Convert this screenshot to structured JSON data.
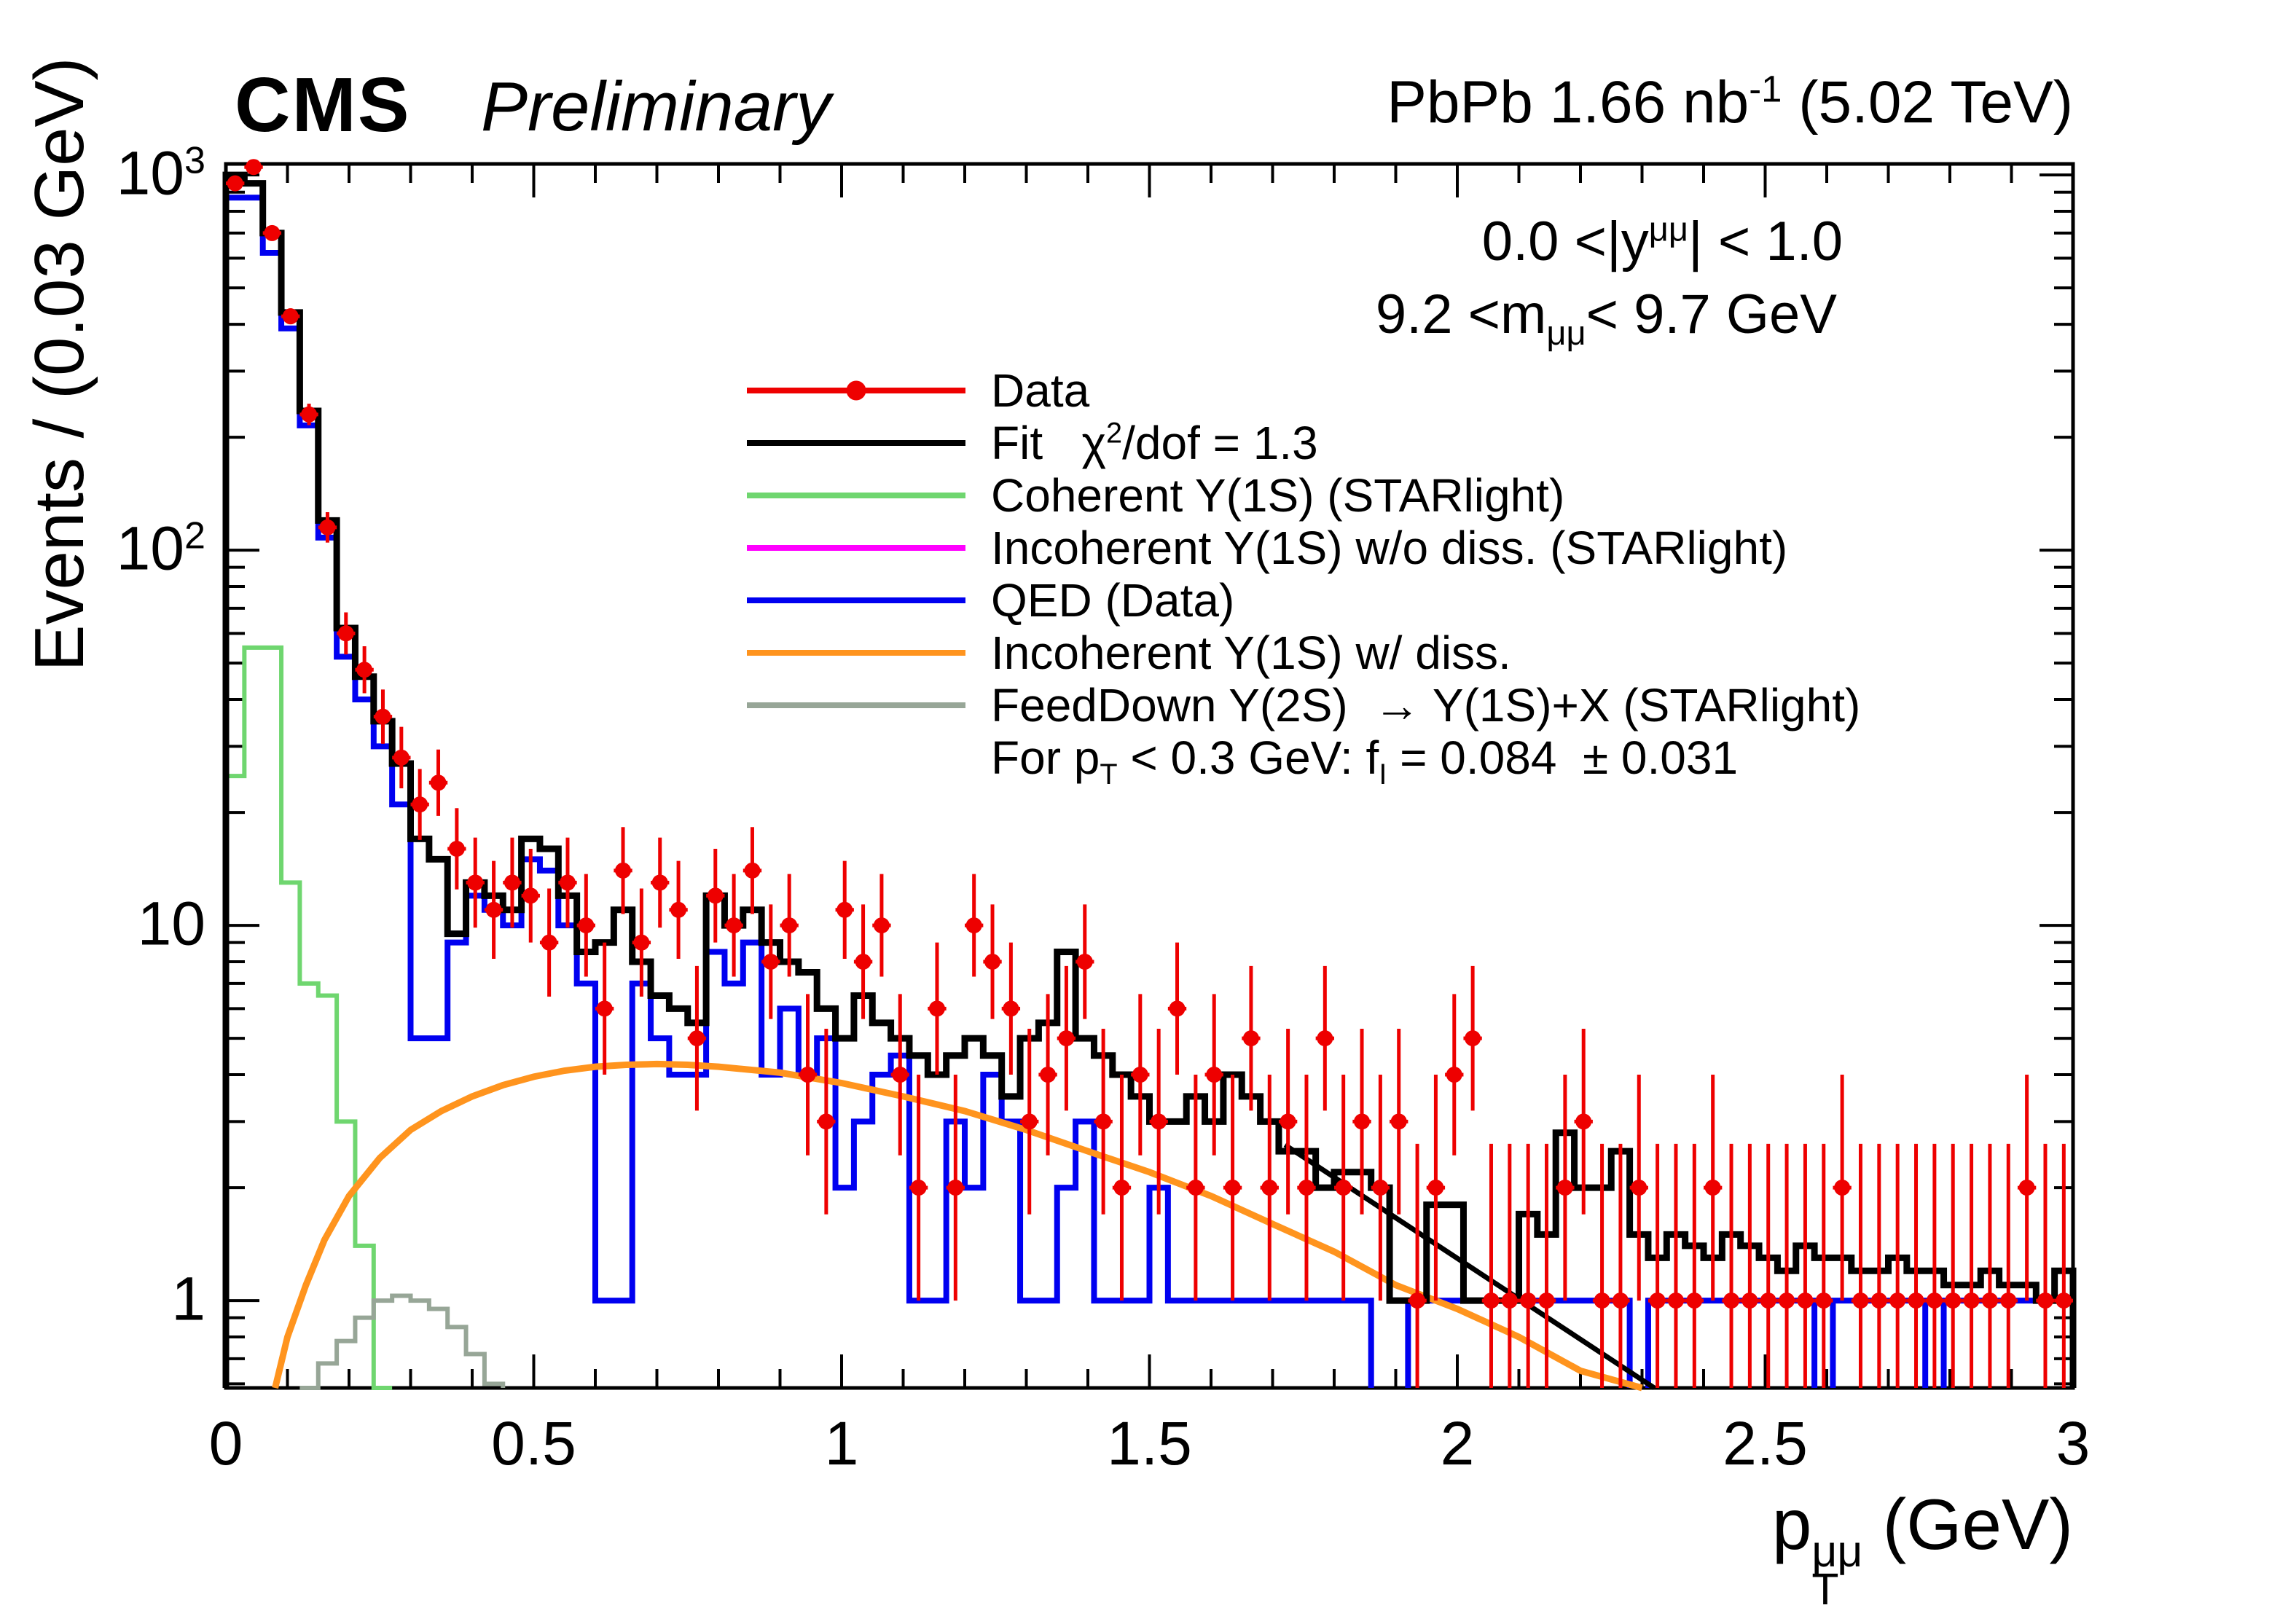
{
  "header": {
    "cms": "CMS",
    "preliminary": "Preliminary",
    "lumi_parts": [
      {
        "t": "PbPb 1.66 nb"
      },
      {
        "t": "-1",
        "sup": true
      },
      {
        "t": " (5.02 TeV)"
      }
    ]
  },
  "annotations": {
    "rapidity_parts": [
      {
        "t": "0.0 <|y"
      },
      {
        "t": "μμ",
        "sup": true
      },
      {
        "t": "| < 1.0"
      }
    ],
    "mass_parts": [
      {
        "t": "9.2 <m"
      },
      {
        "t": "μμ",
        "sub": true
      },
      {
        "t": "< 9.7 GeV"
      }
    ]
  },
  "legend": {
    "entries": [
      {
        "name": "data",
        "color": "#ee0000",
        "marker": "point-line",
        "label_parts": [
          {
            "t": "Data"
          }
        ]
      },
      {
        "name": "fit",
        "color": "#000000",
        "marker": "line",
        "label_parts": [
          {
            "t": "Fit   χ"
          },
          {
            "t": "2",
            "sup": true
          },
          {
            "t": "/dof = 1.3"
          }
        ]
      },
      {
        "name": "coherent",
        "color": "#6fd66f",
        "marker": "line",
        "label_parts": [
          {
            "t": "Coherent Y(1S) (STARlight)"
          }
        ]
      },
      {
        "name": "incoherent-nodiss",
        "color": "#ff00ff",
        "marker": "line",
        "label_parts": [
          {
            "t": "Incoherent Y(1S) w/o diss. (STARlight)"
          }
        ]
      },
      {
        "name": "qed",
        "color": "#0000f0",
        "marker": "line",
        "label_parts": [
          {
            "t": "QED (Data)"
          }
        ]
      },
      {
        "name": "incoherent-diss",
        "color": "#ff941e",
        "marker": "line",
        "label_parts": [
          {
            "t": "Incoherent Y(1S) w/ diss."
          }
        ]
      },
      {
        "name": "feeddown",
        "color": "#97a697",
        "marker": "line",
        "label_parts": [
          {
            "t": "FeedDown Y(2S)  → Y(1S)+X (STARlight)"
          }
        ]
      },
      {
        "name": "fI-note",
        "color": "",
        "marker": "none",
        "label_parts": [
          {
            "t": "For p"
          },
          {
            "t": "T",
            "sub": true
          },
          {
            "t": " < 0.3 GeV: f"
          },
          {
            "t": "I",
            "sub": true
          },
          {
            "t": " = 0.084  ± 0.031"
          }
        ]
      }
    ]
  },
  "chart_data": {
    "type": "bar",
    "note": "log-y histogram, bin width 0.03 GeV, x = dimuon pT (GeV)",
    "ylabel": "Events / (0.03 GeV)",
    "xlabel_parts": [
      {
        "t": "p"
      },
      {
        "stack_top": "μμ",
        "stack_bottom": "T"
      },
      {
        "t": " (GeV)"
      }
    ],
    "xlim": [
      0,
      3
    ],
    "ylim_log": [
      0.585,
      1070
    ],
    "x_ticks": {
      "major": [
        0,
        0.5,
        1,
        1.5,
        2,
        2.5,
        3
      ],
      "labels": [
        "0",
        "0.5",
        "1",
        "1.5",
        "2",
        "2.5",
        "3"
      ],
      "minor_step": 0.1
    },
    "y_ticks": {
      "major": [
        1,
        10,
        100,
        1000
      ],
      "labels": [
        [
          {
            "t": "1"
          }
        ],
        [
          {
            "t": "10"
          }
        ],
        [
          {
            "t": "10"
          },
          {
            "t": "2",
            "sup": true
          }
        ],
        [
          {
            "t": "10"
          },
          {
            "t": "3",
            "sup": true
          }
        ]
      ]
    },
    "series_colors": {
      "data": "#ee0000",
      "fit": "#000000",
      "qed": "#0000f0",
      "coherent": "#6fd66f",
      "feeddown": "#97a697",
      "incoherent_diss": "#ff941e",
      "incoherent_nodiss": "#ff00ff"
    },
    "data": {
      "x_start": 0.015,
      "x_step": 0.03,
      "y": [
        950,
        1050,
        700,
        420,
        230,
        115,
        60,
        48,
        36,
        28,
        21,
        24,
        16,
        13,
        11,
        13,
        12,
        9,
        13,
        10,
        6,
        14,
        9,
        13,
        11,
        5,
        12,
        10,
        14,
        8,
        10,
        4,
        3,
        11,
        8,
        10,
        4,
        2,
        6,
        2,
        10,
        8,
        6,
        3,
        4,
        5,
        8,
        3,
        2,
        4,
        3,
        6,
        2,
        4,
        2,
        5,
        2,
        3,
        2,
        5,
        2,
        3,
        2,
        3,
        1,
        2,
        4,
        5,
        1,
        1,
        1,
        1,
        2,
        3,
        1,
        1,
        2,
        1,
        1,
        1,
        2,
        1,
        1,
        1,
        1,
        1,
        1,
        2,
        1,
        1,
        1,
        1,
        1,
        1,
        1,
        1,
        1,
        2,
        1,
        1
      ]
    },
    "fit": {
      "y": [
        1000,
        950,
        700,
        430,
        235,
        120,
        62,
        46,
        35,
        27,
        17,
        15,
        9.5,
        13,
        12,
        11,
        17,
        16,
        12,
        8.5,
        9,
        11,
        8,
        6.5,
        6,
        5.5,
        12,
        10,
        11,
        9,
        8,
        7.5,
        6,
        5,
        6.5,
        5.5,
        5,
        4.5,
        4,
        4.5,
        5,
        4.5,
        3.5,
        5,
        5.5,
        8.5,
        5,
        4.5,
        4,
        3.5,
        3,
        3,
        3.5,
        3,
        4,
        3.5,
        3,
        2.5,
        2.5,
        2,
        2.2,
        2.2,
        2,
        1,
        1,
        1.8,
        1.8,
        1,
        1,
        1,
        1.7,
        1.5,
        2.8,
        2,
        2,
        2.5,
        1.5,
        1.3,
        1.5,
        1.4,
        1.3,
        1.5,
        1.4,
        1.3,
        1.2,
        1.4,
        1.3,
        1.3,
        1.2,
        1.2,
        1.3,
        1.2,
        1.2,
        1.1,
        1.1,
        1.2,
        1.1,
        1.1,
        1,
        1.2
      ]
    },
    "qed": {
      "y": [
        870,
        870,
        620,
        390,
        215,
        108,
        52,
        40,
        30,
        21,
        5,
        5,
        9,
        12,
        11,
        10,
        15,
        14,
        10,
        7,
        1,
        1,
        7,
        5,
        4,
        4,
        8.5,
        7,
        9,
        4,
        6,
        4,
        5,
        2,
        3,
        4,
        4.5,
        1,
        1,
        3,
        2,
        4,
        3,
        1,
        1,
        2,
        3,
        1,
        1,
        1,
        2,
        1,
        1,
        1,
        1,
        1,
        1,
        1,
        1,
        1,
        1,
        1,
        0,
        0,
        1,
        1,
        1,
        1,
        1,
        1,
        1,
        1,
        1,
        1,
        1,
        1,
        0,
        1,
        1,
        1,
        1,
        1,
        1,
        1,
        1,
        1,
        0,
        1,
        1,
        1,
        1,
        1,
        0,
        1,
        1,
        1,
        1,
        1,
        1,
        1
      ]
    },
    "coherent": {
      "y": [
        25,
        55,
        55,
        13,
        7,
        6.5,
        3,
        1.4,
        0.4
      ]
    },
    "feeddown": {
      "y": [
        0,
        0,
        0,
        0,
        0.55,
        0.68,
        0.78,
        0.9,
        1.0,
        1.03,
        1.0,
        0.95,
        0.85,
        0.72,
        0.6
      ]
    },
    "incoherent_nodiss": {
      "y": []
    },
    "incoherent_diss_curve": {
      "x": [
        0.08,
        0.1,
        0.13,
        0.16,
        0.2,
        0.25,
        0.3,
        0.35,
        0.4,
        0.45,
        0.5,
        0.55,
        0.6,
        0.65,
        0.7,
        0.75,
        0.8,
        0.9,
        1.0,
        1.1,
        1.2,
        1.3,
        1.4,
        1.5,
        1.6,
        1.7,
        1.8,
        1.9,
        2.0,
        2.1,
        2.2,
        2.3
      ],
      "y": [
        0.5,
        0.8,
        1.1,
        1.45,
        1.9,
        2.4,
        2.85,
        3.2,
        3.5,
        3.75,
        3.95,
        4.1,
        4.2,
        4.25,
        4.27,
        4.25,
        4.2,
        4.05,
        3.8,
        3.5,
        3.2,
        2.85,
        2.5,
        2.2,
        1.9,
        1.6,
        1.35,
        1.1,
        0.95,
        0.8,
        0.65,
        0.5
      ]
    },
    "fit_tail_line": {
      "x": [
        1.72,
        2.32
      ],
      "y": [
        2.6,
        0.55
      ]
    }
  }
}
